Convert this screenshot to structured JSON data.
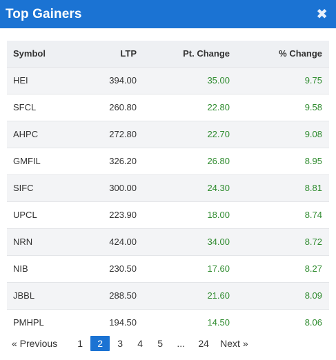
{
  "header": {
    "title": "Top Gainers",
    "close_glyph": "✖"
  },
  "table": {
    "columns": [
      "Symbol",
      "LTP",
      "Pt. Change",
      "% Change"
    ],
    "rows": [
      {
        "symbol": "HEI",
        "ltp": "394.00",
        "pt_change": "35.00",
        "pct_change": "9.75"
      },
      {
        "symbol": "SFCL",
        "ltp": "260.80",
        "pt_change": "22.80",
        "pct_change": "9.58"
      },
      {
        "symbol": "AHPC",
        "ltp": "272.80",
        "pt_change": "22.70",
        "pct_change": "9.08"
      },
      {
        "symbol": "GMFIL",
        "ltp": "326.20",
        "pt_change": "26.80",
        "pct_change": "8.95"
      },
      {
        "symbol": "SIFC",
        "ltp": "300.00",
        "pt_change": "24.30",
        "pct_change": "8.81"
      },
      {
        "symbol": "UPCL",
        "ltp": "223.90",
        "pt_change": "18.00",
        "pct_change": "8.74"
      },
      {
        "symbol": "NRN",
        "ltp": "424.00",
        "pt_change": "34.00",
        "pct_change": "8.72"
      },
      {
        "symbol": "NIB",
        "ltp": "230.50",
        "pt_change": "17.60",
        "pct_change": "8.27"
      },
      {
        "symbol": "JBBL",
        "ltp": "288.50",
        "pt_change": "21.60",
        "pct_change": "8.09"
      },
      {
        "symbol": "PMHPL",
        "ltp": "194.50",
        "pt_change": "14.50",
        "pct_change": "8.06"
      }
    ]
  },
  "pagination": {
    "previous": "« Previous",
    "pages": [
      "1",
      "2",
      "3",
      "4",
      "5"
    ],
    "active_page": "2",
    "ellipsis": "...",
    "last_page": "24",
    "next": "Next »"
  },
  "colors": {
    "header_bg": "#1b73d3",
    "positive_change": "#2e8b2e",
    "active_page_bg": "#1b73d3"
  }
}
